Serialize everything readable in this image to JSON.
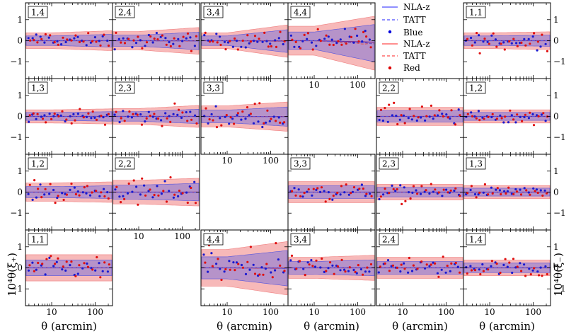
{
  "chart_data": {
    "type": "scatter",
    "description_free": true,
    "grid": {
      "rows": 4,
      "cols": 6
    },
    "x_axis": {
      "scale": "log",
      "range": [
        2.5,
        250
      ],
      "ticks": [
        10,
        100
      ],
      "tick_labels": [
        "10",
        "100"
      ],
      "label": "θ (arcmin)"
    },
    "y_axis": {
      "range": [
        -1.8,
        1.8
      ],
      "ticks": [
        -1,
        0,
        1
      ],
      "tick_labels": [
        "−1",
        "0",
        "1"
      ],
      "left_label": "10⁴θ(ξ₊)",
      "right_label": "10⁴θ(ξ₋)"
    },
    "legend": {
      "placement": "top-center",
      "entries": [
        {
          "label": "NLA-z",
          "kind": "line",
          "color": "#6a6aff"
        },
        {
          "label": "TATT",
          "kind": "dashed",
          "color": "#6a6aff"
        },
        {
          "label": "Blue",
          "kind": "points",
          "color": "#0000dd"
        },
        {
          "label": "NLA-z",
          "kind": "line",
          "color": "#ff6a6a"
        },
        {
          "label": "TATT",
          "kind": "dashed",
          "color": "#ff6a6a"
        },
        {
          "label": "Red",
          "kind": "points",
          "color": "#dd0000"
        }
      ]
    },
    "colors": {
      "blue_band": "#6666dd",
      "blue_line": "#5555dd",
      "blue_point": "#1a1ad0",
      "red_band": "#f08080",
      "red_line": "#e05050",
      "red_point": "#e01010",
      "purple_line": "#7a2a8a"
    },
    "panels": [
      {
        "row": 0,
        "col": 0,
        "label": "1,4",
        "band_w": 0.3,
        "spread": 0.28,
        "fan": 0.1,
        "bias": 0.0
      },
      {
        "row": 0,
        "col": 1,
        "label": "2,4",
        "band_w": 0.35,
        "spread": 0.35,
        "fan": 0.2,
        "bias": -0.05
      },
      {
        "row": 0,
        "col": 2,
        "label": "3,4",
        "band_w": 0.3,
        "spread": 0.3,
        "fan": 0.4,
        "bias": -0.05
      },
      {
        "row": 0,
        "col": 3,
        "label": "4,4",
        "band_w": 0.55,
        "spread": 0.45,
        "fan": 0.6,
        "bias": -0.2
      },
      {
        "row": 0,
        "col": 5,
        "label": "1,1",
        "band_w": 0.3,
        "spread": 0.35,
        "fan": 0.05,
        "bias": 0.0
      },
      {
        "row": 1,
        "col": 0,
        "label": "1,3",
        "band_w": 0.25,
        "spread": 0.22,
        "fan": 0.05,
        "bias": 0.0
      },
      {
        "row": 1,
        "col": 1,
        "label": "2,3",
        "band_w": 0.3,
        "spread": 0.3,
        "fan": 0.15,
        "bias": 0.0
      },
      {
        "row": 1,
        "col": 2,
        "label": "3,3",
        "band_w": 0.4,
        "spread": 0.4,
        "fan": 0.2,
        "bias": -0.05
      },
      {
        "row": 1,
        "col": 4,
        "label": "2,2",
        "band_w": 0.35,
        "spread": 0.35,
        "fan": 0.0,
        "bias": 0.0
      },
      {
        "row": 1,
        "col": 5,
        "label": "1,2",
        "band_w": 0.25,
        "spread": 0.25,
        "fan": 0.0,
        "bias": 0.0
      },
      {
        "row": 2,
        "col": 0,
        "label": "1,2",
        "band_w": 0.35,
        "spread": 0.35,
        "fan": 0.05,
        "bias": 0.0
      },
      {
        "row": 2,
        "col": 1,
        "label": "2,2",
        "band_w": 0.45,
        "spread": 0.45,
        "fan": 0.1,
        "bias": 0.0
      },
      {
        "row": 2,
        "col": 3,
        "label": "3,3",
        "band_w": 0.4,
        "spread": 0.38,
        "fan": 0.0,
        "bias": 0.0
      },
      {
        "row": 2,
        "col": 4,
        "label": "2,3",
        "band_w": 0.3,
        "spread": 0.3,
        "fan": 0.0,
        "bias": 0.0
      },
      {
        "row": 2,
        "col": 5,
        "label": "1,3",
        "band_w": 0.25,
        "spread": 0.22,
        "fan": 0.0,
        "bias": 0.0
      },
      {
        "row": 3,
        "col": 0,
        "label": "1,1",
        "band_w": 0.5,
        "spread": 0.4,
        "fan": 0.0,
        "bias": 0.0
      },
      {
        "row": 3,
        "col": 2,
        "label": "4,4",
        "band_w": 0.7,
        "spread": 0.6,
        "fan": 0.4,
        "bias": -0.05
      },
      {
        "row": 3,
        "col": 3,
        "label": "3,4",
        "band_w": 0.4,
        "spread": 0.35,
        "fan": 0.1,
        "bias": 0.0
      },
      {
        "row": 3,
        "col": 4,
        "label": "2,4",
        "band_w": 0.4,
        "spread": 0.35,
        "fan": 0.0,
        "bias": 0.0
      },
      {
        "row": 3,
        "col": 5,
        "label": "1,4",
        "band_w": 0.3,
        "spread": 0.3,
        "fan": 0.0,
        "bias": 0.0
      }
    ]
  }
}
